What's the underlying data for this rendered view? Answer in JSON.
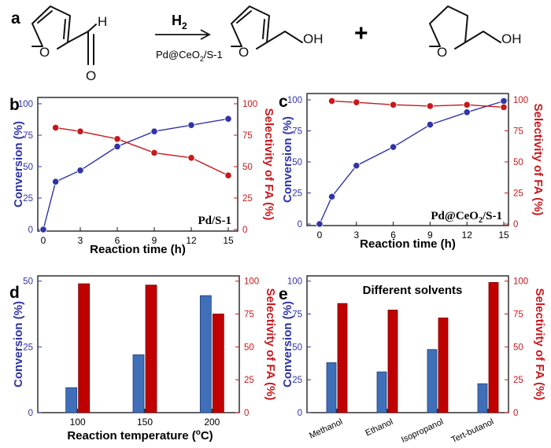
{
  "figure": {
    "panel_a_label": "a",
    "reagent": "H",
    "reagent_sub": "2",
    "catalyst_parts": [
      "Pd@CeO",
      "2",
      "/S-1"
    ],
    "plus": "+",
    "atoms": {
      "oxygen": "O",
      "hydrogen": "H",
      "hydroxyl": "OH"
    }
  },
  "colors": {
    "conversion": "#2f34a8",
    "selectivity": "#c8181c",
    "bar_conversion": "#3f6fb8",
    "bar_selectivity": "#c00000",
    "axis": "#111111"
  },
  "chart_data": [
    {
      "panel": "b",
      "type": "line",
      "annotation": "Pd/S-1",
      "xlabel": "Reaction time (h)",
      "ylabel_left": "Conversion (%)",
      "ylabel_right": "Selectivity of FA (%)",
      "x_ticks": [
        0,
        3,
        6,
        9,
        12,
        15
      ],
      "xlim": [
        0,
        15
      ],
      "y_ticks": [
        0,
        25,
        50,
        75,
        100
      ],
      "ylim": [
        0,
        100
      ],
      "series": [
        {
          "name": "Conversion",
          "axis": "left",
          "x": [
            0,
            1,
            3,
            6,
            9,
            12,
            15
          ],
          "values": [
            0,
            38,
            47,
            66,
            78,
            83,
            88
          ]
        },
        {
          "name": "Selectivity of FA",
          "axis": "right",
          "x": [
            1,
            3,
            6,
            9,
            12,
            15
          ],
          "values": [
            81,
            78,
            72,
            61,
            57,
            43
          ]
        }
      ]
    },
    {
      "panel": "c",
      "type": "line",
      "annotation": "Pd@CeO2/S-1",
      "xlabel": "Reaction time (h)",
      "ylabel_left": "Conversion (%)",
      "ylabel_right": "Selectivity of FA (%)",
      "x_ticks": [
        0,
        3,
        6,
        9,
        12,
        15
      ],
      "xlim": [
        0,
        15
      ],
      "y_ticks": [
        0,
        25,
        50,
        75,
        100
      ],
      "ylim": [
        0,
        100
      ],
      "series": [
        {
          "name": "Conversion",
          "axis": "left",
          "x": [
            0,
            1,
            3,
            6,
            9,
            12,
            15
          ],
          "values": [
            0,
            22,
            47,
            62,
            80,
            90,
            99
          ]
        },
        {
          "name": "Selectivity of FA",
          "axis": "right",
          "x": [
            1,
            3,
            6,
            9,
            12,
            15
          ],
          "values": [
            99,
            98,
            96,
            95,
            96,
            94
          ]
        }
      ]
    },
    {
      "panel": "d",
      "type": "bar",
      "xlabel": "Reaction temperature (oC)",
      "ylabel_left": "Conversion (%)",
      "ylabel_right": "Selectivity of FA (%)",
      "categories": [
        "100",
        "150",
        "200"
      ],
      "y_ticks_left": [
        0,
        25,
        50
      ],
      "ylim_left": [
        0,
        52
      ],
      "y_ticks_right": [
        0,
        25,
        50,
        75,
        100
      ],
      "ylim_right": [
        0,
        104
      ],
      "series": [
        {
          "name": "Conversion",
          "axis": "left",
          "values": [
            9.5,
            22,
            44.5
          ]
        },
        {
          "name": "Selectivity of FA",
          "axis": "right",
          "values": [
            98,
            97,
            75
          ]
        }
      ]
    },
    {
      "panel": "e",
      "type": "bar",
      "annotation": "Different solvents",
      "xlabel": "",
      "ylabel_left": "Conversion (%)",
      "ylabel_right": "Selectivity of FA (%)",
      "categories": [
        "Methanol",
        "Ethanol",
        "Isopropanol",
        "Tert-butanol"
      ],
      "y_ticks_left": [
        0,
        25,
        50,
        75,
        100
      ],
      "ylim_left": [
        0,
        104
      ],
      "y_ticks_right": [
        0,
        25,
        50,
        75,
        100
      ],
      "ylim_right": [
        0,
        104
      ],
      "series": [
        {
          "name": "Conversion",
          "axis": "left",
          "values": [
            38,
            31,
            48,
            22
          ]
        },
        {
          "name": "Selectivity of FA",
          "axis": "right",
          "values": [
            83,
            78,
            72,
            99
          ]
        }
      ]
    }
  ]
}
